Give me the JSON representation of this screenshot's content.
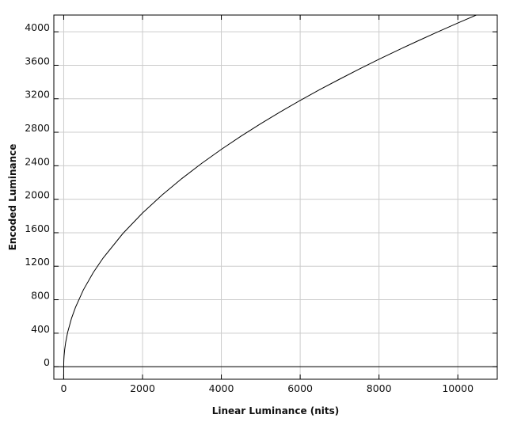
{
  "chart_data": {
    "type": "line",
    "title": "",
    "xlabel": "Linear Luminance (nits)",
    "ylabel": "Encoded Luminance",
    "xlim": [
      -250,
      11000
    ],
    "ylim": [
      -150,
      4200
    ],
    "xticks": [
      0,
      2000,
      4000,
      6000,
      8000,
      10000
    ],
    "xtick_labels": [
      "0",
      "2000",
      "4000",
      "6000",
      "8000",
      "10000"
    ],
    "yticks": [
      0,
      400,
      800,
      1200,
      1600,
      2000,
      2400,
      2800,
      3200,
      3600,
      4000
    ],
    "ytick_labels": [
      "0",
      "400",
      "800",
      "1200",
      "1600",
      "2000",
      "2400",
      "2800",
      "3200",
      "3600",
      "4000"
    ],
    "grid": true,
    "series": [
      {
        "color": "#000000",
        "x": [
          0,
          1,
          5,
          10,
          25,
          50,
          100,
          200,
          300,
          500,
          750,
          1000,
          1500,
          2000,
          2500,
          3000,
          3500,
          4000,
          4500,
          5000,
          5500,
          6000,
          6500,
          7000,
          7500,
          8000,
          8500,
          9000,
          9500,
          10000,
          10500
        ],
        "y": [
          -150,
          41,
          92,
          130,
          205,
          290,
          410,
          580,
          710,
          918,
          1124,
          1298,
          1590,
          1836,
          2052,
          2248,
          2428,
          2596,
          2754,
          2903,
          3044,
          3180,
          3310,
          3434,
          3555,
          3672,
          3785,
          3894,
          4001,
          4105,
          4206
        ]
      }
    ]
  }
}
